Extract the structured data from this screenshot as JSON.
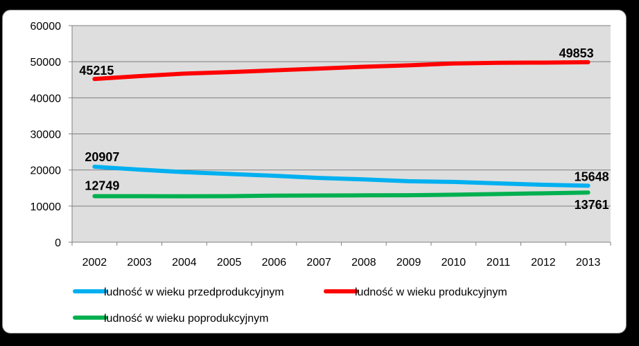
{
  "chart_data": {
    "type": "line",
    "title": "",
    "xlabel": "",
    "ylabel": "",
    "categories": [
      "2002",
      "2003",
      "2004",
      "2005",
      "2006",
      "2007",
      "2008",
      "2009",
      "2010",
      "2011",
      "2012",
      "2013"
    ],
    "ylim": [
      0,
      60000
    ],
    "yticks": [
      "0",
      "10000",
      "20000",
      "30000",
      "40000",
      "50000",
      "60000"
    ],
    "grid": true,
    "legend_position": "bottom",
    "series": [
      {
        "name": "ludność w wieku przedprodukcyjnym",
        "color": "#00b0f0",
        "values": [
          20907,
          20100,
          19400,
          18900,
          18400,
          17800,
          17400,
          16900,
          16700,
          16300,
          15900,
          15648
        ],
        "labels": [
          {
            "index": 0,
            "text": "20907"
          },
          {
            "index": 11,
            "text": "15648"
          }
        ]
      },
      {
        "name": "ludność w wieku produkcyjnym",
        "color": "#ff0000",
        "values": [
          45215,
          46000,
          46700,
          47100,
          47600,
          48100,
          48600,
          49000,
          49500,
          49700,
          49750,
          49853
        ],
        "labels": [
          {
            "index": 0,
            "text": "45215"
          },
          {
            "index": 11,
            "text": "49853"
          }
        ]
      },
      {
        "name": "ludność w wieku poprodukcyjnym",
        "color": "#00b050",
        "values": [
          12749,
          12740,
          12730,
          12750,
          12900,
          12950,
          12980,
          13000,
          13150,
          13350,
          13550,
          13761
        ],
        "labels": [
          {
            "index": 0,
            "text": "12749"
          },
          {
            "index": 11,
            "text": "13761"
          }
        ]
      }
    ]
  }
}
